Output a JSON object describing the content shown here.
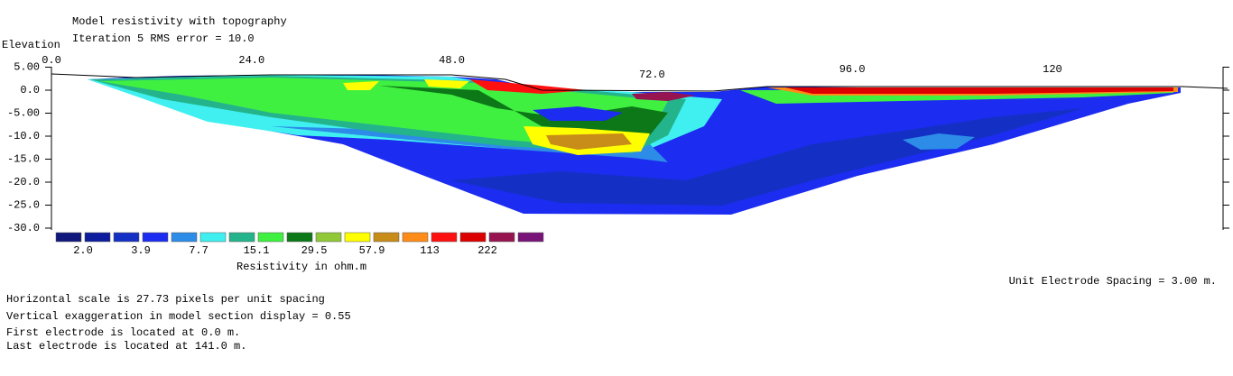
{
  "chart_data": {
    "type": "contour",
    "title": "Model resistivity with topography",
    "subtitle": "Iteration 5 RMS error = 10.0",
    "y_label": "Elevation",
    "xlim": [
      0,
      141
    ],
    "ylim": [
      -30,
      5
    ],
    "xticks": [
      {
        "value": 0,
        "label": "0.0"
      },
      {
        "value": 24,
        "label": "24.0"
      },
      {
        "value": 48,
        "label": "48.0"
      },
      {
        "value": 72,
        "label": "72.0"
      },
      {
        "value": 96,
        "label": "96.0"
      },
      {
        "value": 120,
        "label": "120"
      }
    ],
    "yticks": [
      {
        "value": 5,
        "label": "5.00"
      },
      {
        "value": 0,
        "label": "0.0"
      },
      {
        "value": -5,
        "label": "-5.00"
      },
      {
        "value": -10,
        "label": "-10.0"
      },
      {
        "value": -15,
        "label": "-15.0"
      },
      {
        "value": -20,
        "label": "-20.0"
      },
      {
        "value": -25,
        "label": "-25.0"
      },
      {
        "value": -30,
        "label": "-30.0"
      }
    ],
    "colorbar": {
      "colors": [
        "#10187c",
        "#0c1c9c",
        "#1430c4",
        "#1c2cf0",
        "#2c8ce8",
        "#40f0f0",
        "#24b48c",
        "#40f040",
        "#0c7818",
        "#90c838",
        "#ffff00",
        "#c88c18",
        "#ff8c18",
        "#ff1010",
        "#dc0000",
        "#961450",
        "#781478"
      ],
      "labels": [
        {
          "value": 2,
          "label": "2.0"
        },
        3.9,
        7.7,
        15.1,
        29.5,
        57.9,
        113,
        222
      ],
      "title": "Resistivity in ohm.m"
    }
  },
  "unit_spacing": "Unit Electrode Spacing = 3.00 m.",
  "notes": [
    "Horizontal scale is 27.73 pixels per unit spacing",
    "Vertical exaggeration in model section display = 0.55",
    "First electrode is located at 0.0  m.",
    "Last electrode is located at 141.0 m."
  ]
}
